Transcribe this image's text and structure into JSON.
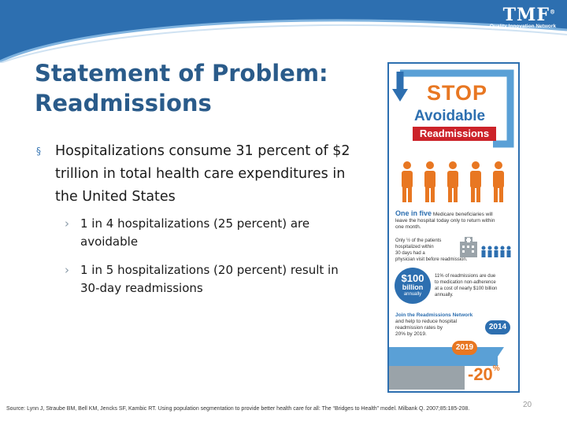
{
  "header": {
    "logo_text": "TMF",
    "logo_trademark": "®",
    "logo_tagline": "Quality Innovation Network",
    "band_color": "#2d6fb0"
  },
  "slide": {
    "title_line1": "Statement of Problem:",
    "title_line2": "Readmissions",
    "bullet_marker": "§",
    "bullet_text": "Hospitalizations consume 31 percent of $2 trillion in total health care expenditures in the United States",
    "sub_marker": "›",
    "sub_items": [
      {
        "text": "1 in 4 hospitalizations (25 percent) are avoidable"
      },
      {
        "text": "1 in 5 hospitalizations (20 percent) result in 30-day readmissions"
      }
    ],
    "source": "Source: Lynn J, Straube BM, Bell KM, Jencks SF, Kambic RT. Using population segmentation to provide better health care for all: The “Bridges to Health” model. Milbank Q. 2007;85:185-208.",
    "page_number": "20"
  },
  "infographic": {
    "stop": "STOP",
    "avoidable": "Avoidable",
    "readmissions": "Readmissions",
    "one_in_five": "One in five",
    "one_in_five_rest_1": " Medicare beneficiaries will",
    "one_in_five_rest_2": "leave the hospital today only to return within",
    "one_in_five_rest_3": "one month.",
    "half_line_1": "Only ½ of the patients",
    "half_line_2": "hospitalized within",
    "half_line_3": "30 days had a",
    "half_line_4": "physician visit before readmission.",
    "amount": "$100",
    "billion": "billion",
    "annually": "annually",
    "cost_line_1": "11% of readmissions are due",
    "cost_line_2": "to medication non-adherence",
    "cost_line_3": "at a cost of nearly $100 billion",
    "cost_line_4": "annually.",
    "join_title": "Join the Readmissions Network",
    "join_line_1": "and help to reduce hospital",
    "join_line_2": "readmission rates by",
    "join_line_3": "20% by 2019.",
    "year_2014": "2014",
    "year_2019": "2019",
    "reduction": "-20",
    "reduction_pct": "%",
    "colors": {
      "blue": "#2d6fb0",
      "orange": "#e87722",
      "red": "#cc2229",
      "gray": "#9aa3a9",
      "light_blue": "#5aa0d6"
    }
  }
}
